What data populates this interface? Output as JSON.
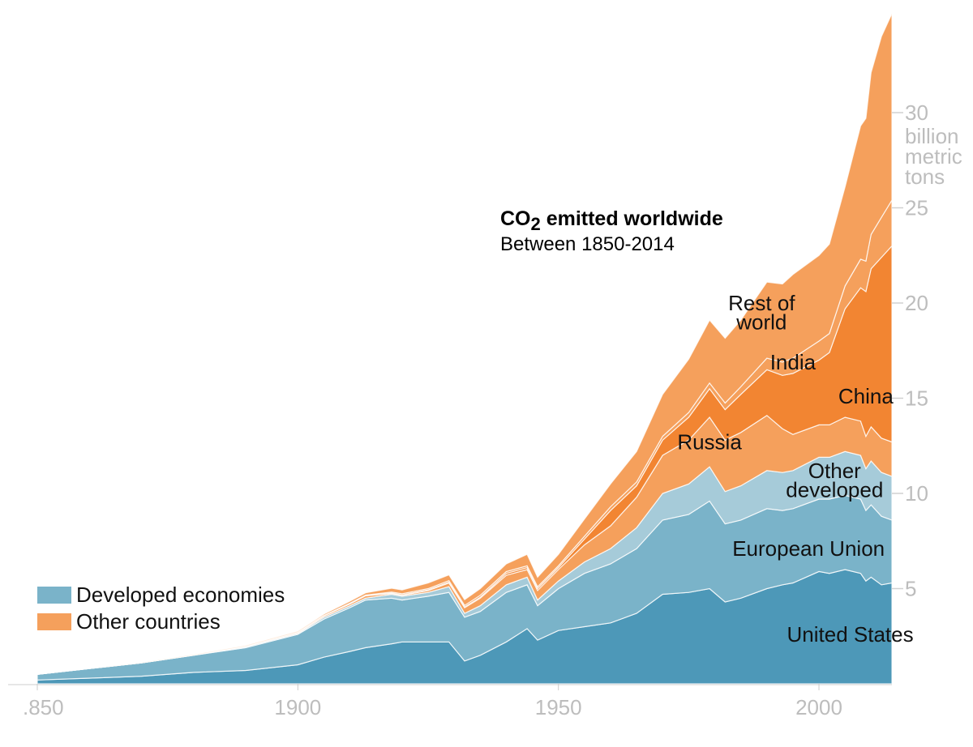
{
  "title": {
    "prefix": "CO",
    "subscript": "2",
    "suffix": " emitted worldwide",
    "subtitle": "Between 1850-2014"
  },
  "legend": [
    {
      "label": "Developed economies",
      "color": "#7ab3c9"
    },
    {
      "label": "Other countries",
      "color": "#f5a05c"
    }
  ],
  "chart_data": {
    "type": "area",
    "stacked": true,
    "unit": "billion metric tons",
    "x_ticks": [
      ".850",
      "1900",
      "1950",
      "2000"
    ],
    "x_tick_values": [
      1850,
      1900,
      1950,
      2000
    ],
    "y_ticks": [
      5,
      10,
      15,
      20,
      25,
      30
    ],
    "y_unit_label": [
      "billion",
      "metric",
      "tons"
    ],
    "xlim": [
      1850,
      2014
    ],
    "ylim": [
      0,
      34
    ],
    "x": [
      1850,
      1860,
      1870,
      1880,
      1890,
      1900,
      1905,
      1910,
      1913,
      1918,
      1920,
      1925,
      1929,
      1932,
      1935,
      1940,
      1944,
      1946,
      1950,
      1955,
      1960,
      1965,
      1970,
      1975,
      1979,
      1982,
      1985,
      1990,
      1993,
      1995,
      2000,
      2002,
      2005,
      2008,
      2009,
      2010,
      2012,
      2014
    ],
    "series": [
      {
        "name": "United States",
        "group": "Developed economies",
        "color": "#4d98b8",
        "values": [
          0.2,
          0.3,
          0.4,
          0.6,
          0.7,
          1.0,
          1.4,
          1.7,
          1.9,
          2.1,
          2.2,
          2.2,
          2.2,
          1.2,
          1.5,
          2.2,
          2.9,
          2.3,
          2.8,
          3.0,
          3.2,
          3.7,
          4.7,
          4.8,
          5.0,
          4.3,
          4.5,
          5.0,
          5.2,
          5.3,
          5.9,
          5.8,
          6.0,
          5.8,
          5.4,
          5.6,
          5.2,
          5.3
        ]
      },
      {
        "name": "European Union",
        "group": "Developed economies",
        "color": "#7ab3c9",
        "values": [
          0.3,
          0.5,
          0.7,
          0.9,
          1.2,
          1.6,
          2.0,
          2.3,
          2.5,
          2.4,
          2.2,
          2.4,
          2.6,
          2.3,
          2.3,
          2.6,
          2.3,
          1.8,
          2.2,
          2.8,
          3.1,
          3.4,
          3.9,
          4.1,
          4.6,
          4.1,
          4.1,
          4.2,
          3.9,
          3.9,
          3.8,
          3.9,
          3.9,
          3.9,
          3.7,
          3.8,
          3.6,
          3.3
        ]
      },
      {
        "name": "Other developed",
        "group": "Developed economies",
        "color": "#a6cbd9",
        "values": [
          0.0,
          0.0,
          0.0,
          0.0,
          0.05,
          0.05,
          0.1,
          0.1,
          0.1,
          0.2,
          0.2,
          0.2,
          0.3,
          0.2,
          0.3,
          0.4,
          0.4,
          0.3,
          0.4,
          0.6,
          0.8,
          1.1,
          1.4,
          1.6,
          1.8,
          1.7,
          1.8,
          2.0,
          2.0,
          2.0,
          2.2,
          2.2,
          2.3,
          2.3,
          2.2,
          2.3,
          2.3,
          2.3
        ]
      },
      {
        "name": "Russia",
        "group": "Other countries",
        "color": "#f5a05c",
        "values": [
          0.0,
          0.0,
          0.0,
          0.01,
          0.02,
          0.05,
          0.07,
          0.1,
          0.12,
          0.05,
          0.05,
          0.1,
          0.2,
          0.3,
          0.4,
          0.5,
          0.4,
          0.5,
          0.6,
          0.9,
          1.2,
          1.6,
          2.0,
          2.3,
          2.6,
          2.7,
          2.8,
          2.9,
          2.3,
          1.9,
          1.7,
          1.7,
          1.8,
          1.8,
          1.7,
          1.8,
          1.8,
          1.8
        ]
      },
      {
        "name": "China",
        "group": "Other countries",
        "color": "#f28532",
        "values": [
          0.0,
          0.0,
          0.0,
          0.0,
          0.0,
          0.0,
          0.0,
          0.01,
          0.01,
          0.02,
          0.02,
          0.03,
          0.04,
          0.04,
          0.05,
          0.1,
          0.1,
          0.1,
          0.1,
          0.3,
          0.8,
          0.6,
          0.8,
          1.2,
          1.5,
          1.6,
          2.0,
          2.4,
          2.8,
          3.2,
          3.4,
          3.8,
          5.7,
          7.0,
          7.6,
          8.3,
          9.5,
          10.3
        ]
      },
      {
        "name": "India",
        "group": "Other countries",
        "color": "#f5a05c",
        "values": [
          0.0,
          0.0,
          0.0,
          0.0,
          0.01,
          0.01,
          0.02,
          0.03,
          0.03,
          0.05,
          0.06,
          0.07,
          0.08,
          0.08,
          0.1,
          0.1,
          0.1,
          0.1,
          0.1,
          0.15,
          0.2,
          0.2,
          0.2,
          0.25,
          0.3,
          0.35,
          0.4,
          0.6,
          0.7,
          0.8,
          1.0,
          1.0,
          1.2,
          1.5,
          1.6,
          1.8,
          2.1,
          2.4
        ]
      },
      {
        "name": "Rest of world",
        "group": "Other countries",
        "color": "#f5a05c",
        "values": [
          0.0,
          0.0,
          0.01,
          0.02,
          0.03,
          0.05,
          0.07,
          0.1,
          0.12,
          0.2,
          0.2,
          0.3,
          0.3,
          0.3,
          0.35,
          0.4,
          0.6,
          0.5,
          0.6,
          0.9,
          1.2,
          1.6,
          2.2,
          2.8,
          3.3,
          3.4,
          3.5,
          4.0,
          4.1,
          4.4,
          4.5,
          4.7,
          5.2,
          7.0,
          7.5,
          8.5,
          9.5,
          9.8
        ]
      }
    ]
  }
}
